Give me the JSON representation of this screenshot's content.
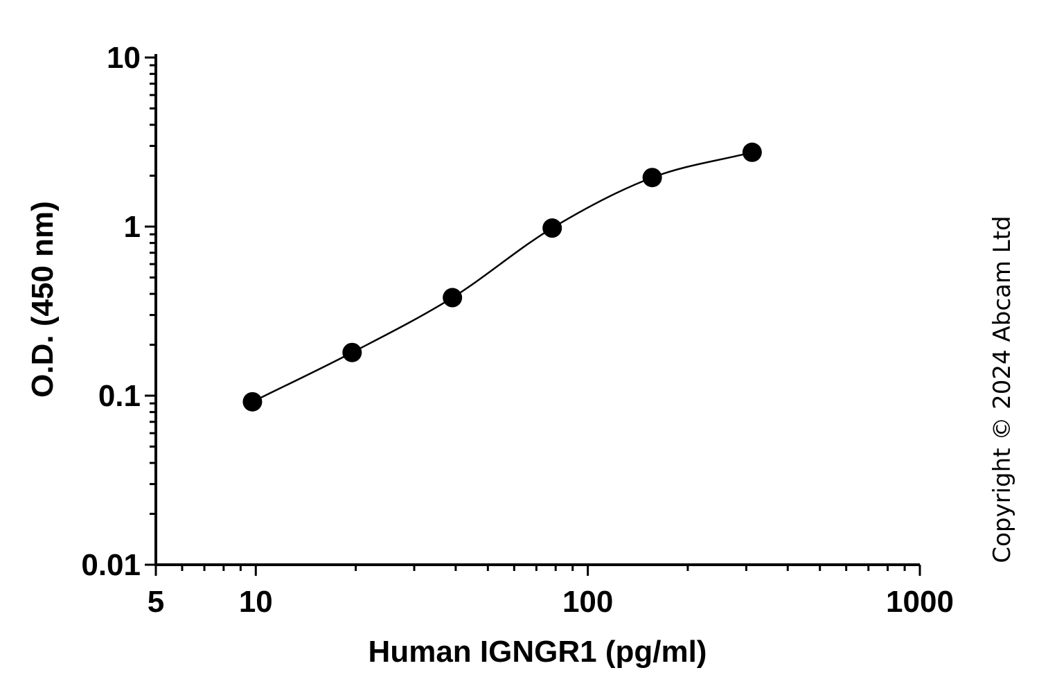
{
  "chart_data": {
    "type": "scatter",
    "xlabel": "Human IGNGR1 (pg/ml)",
    "ylabel": "O.D. (450 nm)",
    "x_scale": "log",
    "y_scale": "log",
    "xlim": [
      5,
      1000
    ],
    "ylim": [
      0.01,
      10
    ],
    "x_tick_labels": [
      "5",
      "10",
      "100",
      "1000"
    ],
    "y_tick_labels": [
      "0.01",
      "0.1",
      "1",
      "10"
    ],
    "grid": false,
    "series": [
      {
        "x": [
          9.77,
          19.5,
          39.1,
          78.1,
          156.3,
          312.5
        ],
        "y": [
          0.092,
          0.18,
          0.38,
          0.98,
          1.95,
          2.75
        ]
      }
    ],
    "fit_curve": true,
    "point_color": "#000000",
    "annotation": "Copyright © 2024 Abcam Ltd"
  }
}
